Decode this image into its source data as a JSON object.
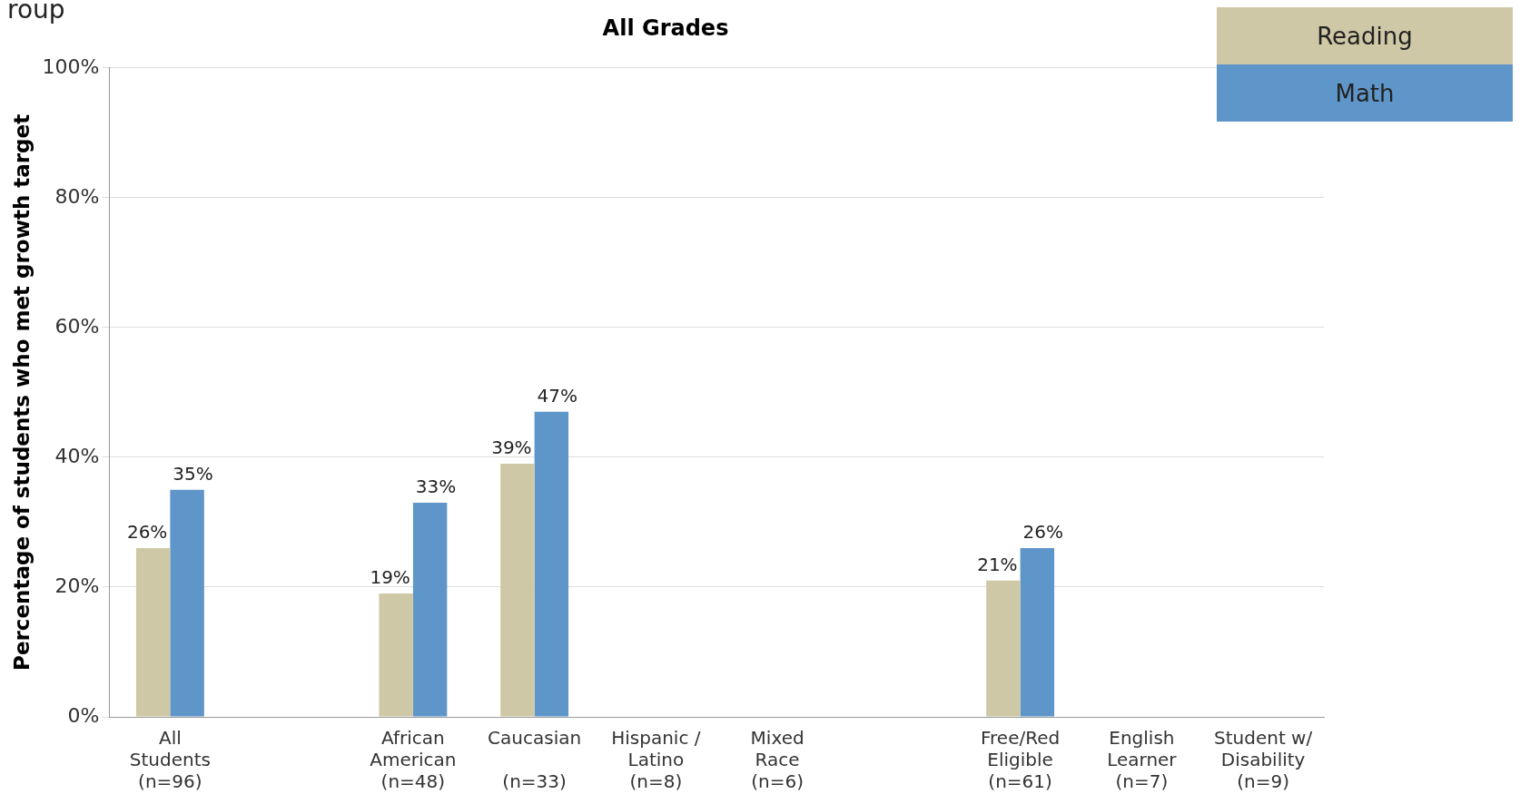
{
  "chart_data": {
    "type": "bar",
    "title": "All Grades",
    "ylabel": "Percentage of students who met growth target",
    "annotations": [
      "roup"
    ],
    "categories": [
      "All\nStudents\n(n=96)",
      null,
      "African\nAmerican\n(n=48)",
      "Caucasian\n\n(n=33)",
      "Hispanic /\nLatino\n(n=8)",
      "Mixed\nRace\n(n=6)",
      null,
      "Free/Red\nEligible\n(n=61)",
      "English\nLearner\n(n=7)",
      "Student w/\nDisability\n(n=9)"
    ],
    "series": [
      {
        "name": "Reading",
        "color": "#cfc8a6",
        "values": [
          26,
          null,
          19,
          39,
          null,
          null,
          null,
          21,
          null,
          null
        ],
        "value_labels": [
          "26%",
          null,
          "19%",
          "39%",
          null,
          null,
          null,
          "21%",
          null,
          null
        ]
      },
      {
        "name": "Math",
        "color": "#5f96c9",
        "values": [
          35,
          null,
          33,
          47,
          null,
          null,
          null,
          26,
          null,
          null
        ],
        "value_labels": [
          "35%",
          null,
          "33%",
          "47%",
          null,
          null,
          null,
          "26%",
          null,
          null
        ]
      }
    ],
    "ylim": [
      0,
      100
    ],
    "yticks": [
      {
        "value": 0,
        "label": "0%"
      },
      {
        "value": 20,
        "label": "20%"
      },
      {
        "value": 40,
        "label": "40%"
      },
      {
        "value": 60,
        "label": "60%"
      },
      {
        "value": 80,
        "label": "80%"
      },
      {
        "value": 100,
        "label": "100%"
      }
    ],
    "grid": "y",
    "legend": "top right"
  }
}
